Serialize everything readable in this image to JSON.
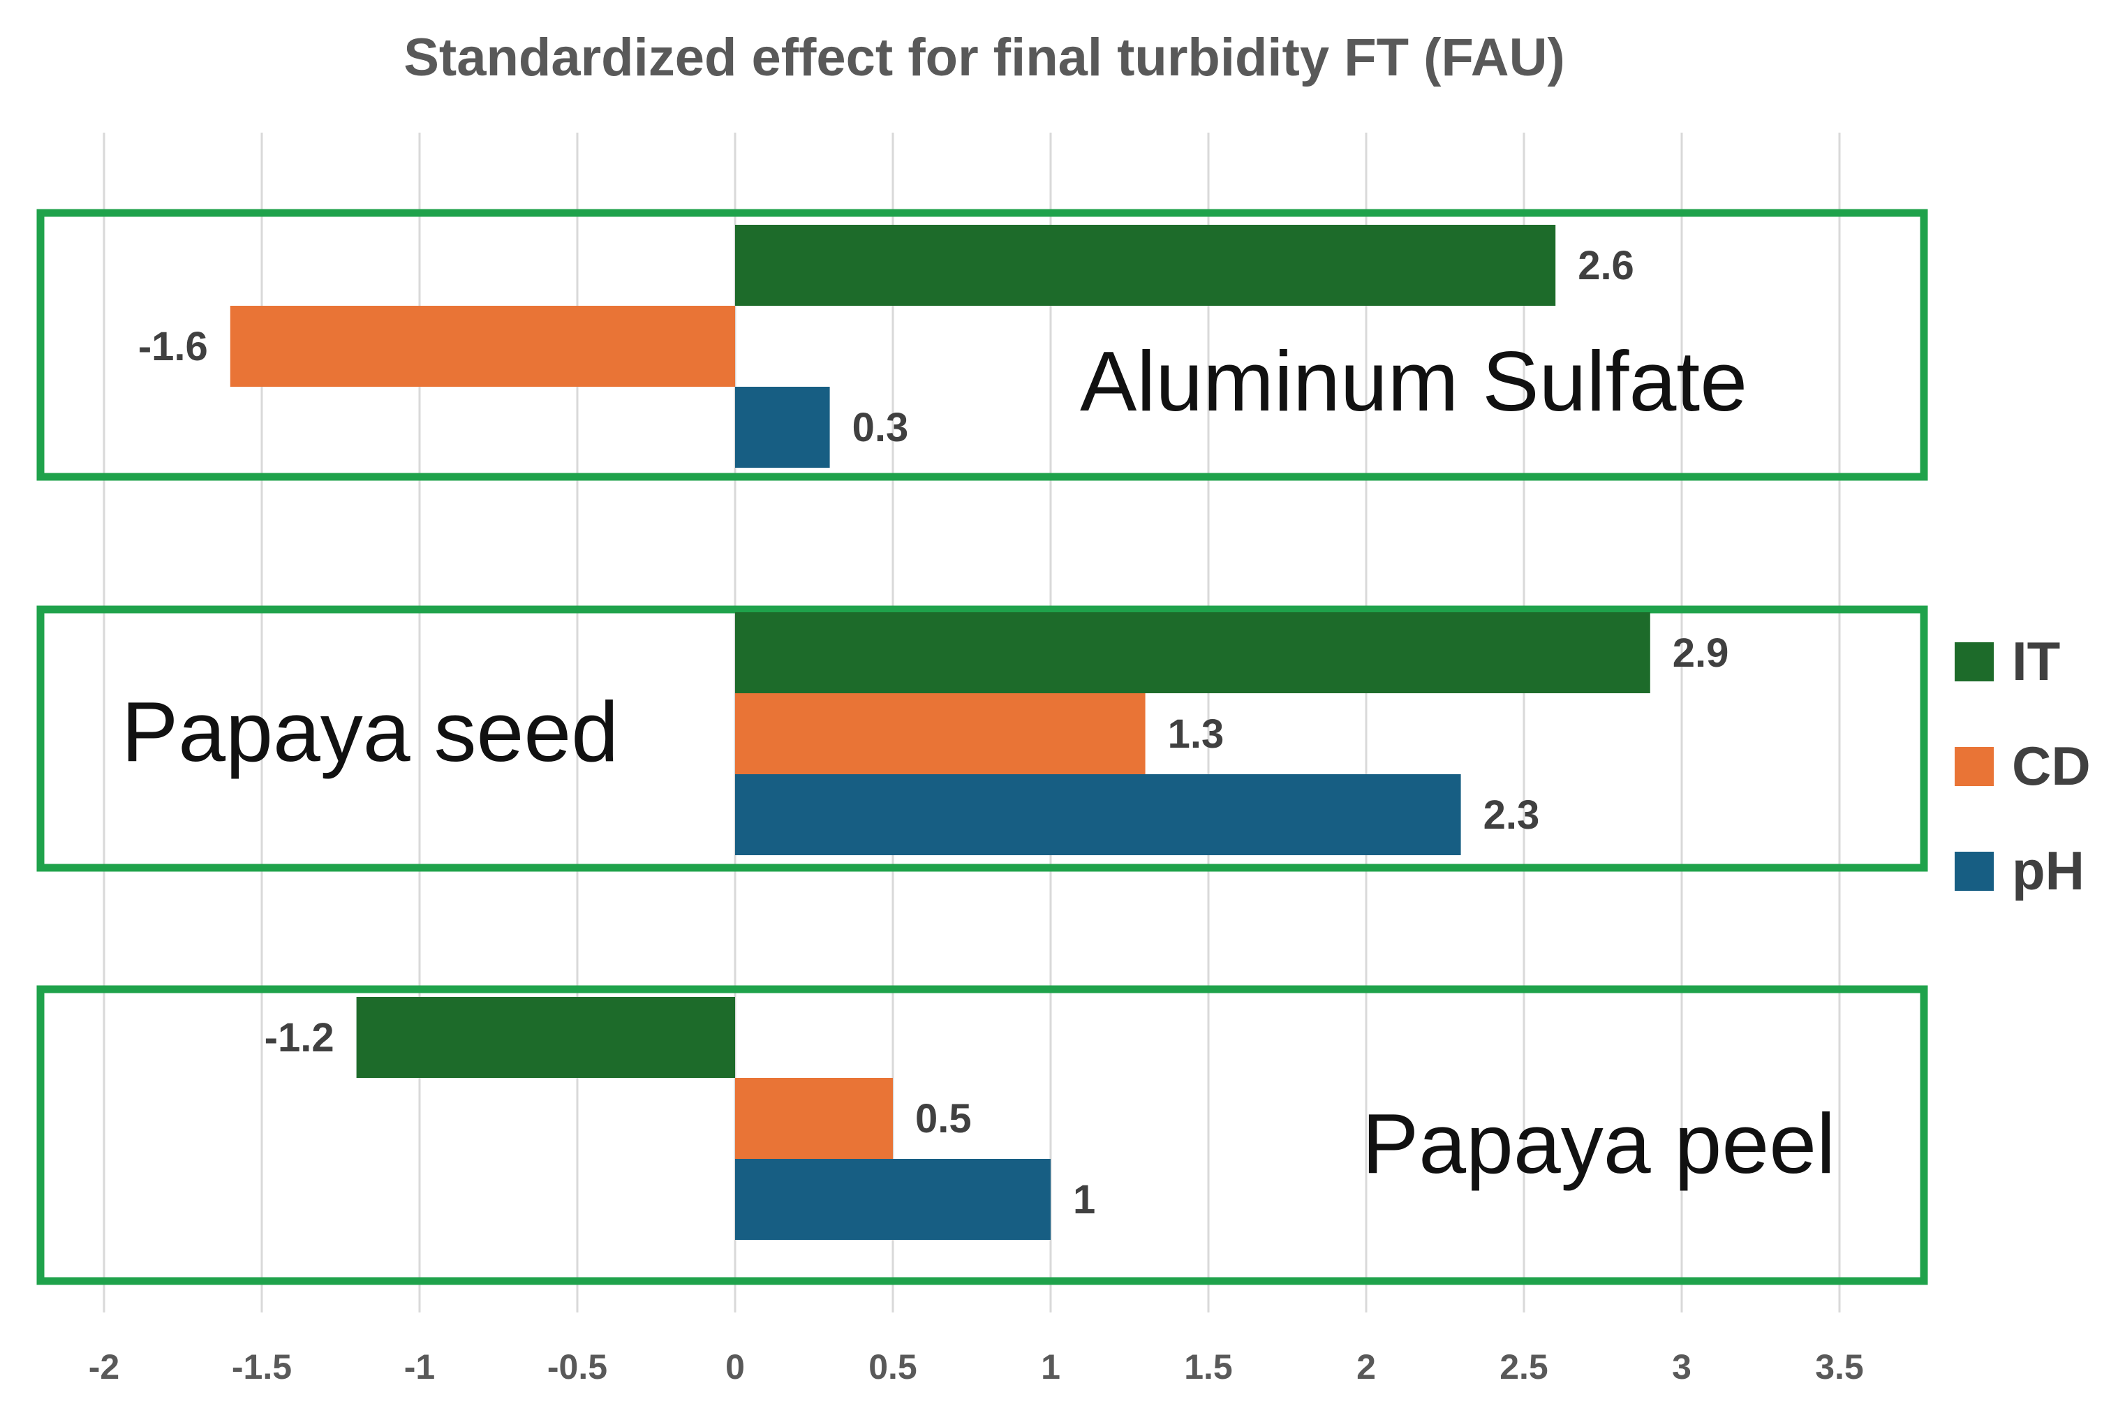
{
  "chart_data": {
    "type": "bar",
    "orientation": "horizontal",
    "title": "Standardized effect for final turbidity FT (FAU)",
    "xlim": [
      -2,
      3.75
    ],
    "ticks": [
      "-2",
      "-1.5",
      "-1",
      "-0.5",
      "0",
      "0.5",
      "1",
      "1.5",
      "2",
      "2.5",
      "3",
      "3.5"
    ],
    "tick_values": [
      -2,
      -1.5,
      -1,
      -0.5,
      0,
      0.5,
      1,
      1.5,
      2,
      2.5,
      3,
      3.5
    ],
    "grid": true,
    "legend_position": "right",
    "series": [
      {
        "name": "IT",
        "color": "#1d6b2a"
      },
      {
        "name": "CD",
        "color": "#e97436"
      },
      {
        "name": "pH",
        "color": "#175e83"
      }
    ],
    "groups": [
      {
        "name": "Aluminum Sulfate",
        "label_side": "right",
        "values": [
          2.6,
          -1.6,
          0.3
        ],
        "labels": [
          "2.6",
          "-1.6",
          "0.3"
        ]
      },
      {
        "name": "Papaya seed",
        "label_side": "left",
        "values": [
          2.9,
          1.3,
          2.3
        ],
        "labels": [
          "2.9",
          "1.3",
          "2.3"
        ]
      },
      {
        "name": "Papaya peel",
        "label_side": "right",
        "values": [
          -1.2,
          0.5,
          1
        ],
        "labels": [
          "-1.2",
          "0.5",
          "1"
        ]
      }
    ],
    "box_color": "#1fa24b"
  }
}
